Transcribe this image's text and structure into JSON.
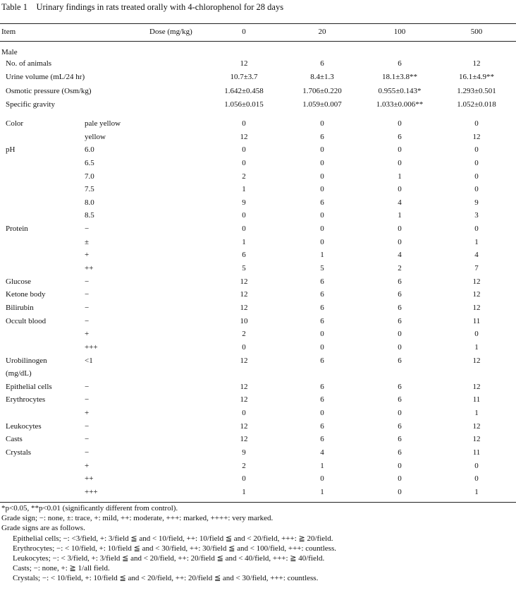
{
  "title": "Table 1 Urinary findings in rats treated orally with 4-chlorophenol for 28 days",
  "header": [
    "Item",
    "Dose (mg/kg)",
    "0",
    "20",
    "100",
    "500"
  ],
  "section": "Male",
  "summary_rows": [
    [
      "No. of animals",
      "12",
      "6",
      "6",
      "12"
    ],
    [
      "Urine volume (mL/24 hr)",
      "10.7±3.7",
      "8.4±1.3",
      "18.1±3.8**",
      "16.1±4.9**"
    ],
    [
      "Osmotic pressure (Osm/kg)",
      "1.642±0.458",
      "1.706±0.220",
      "0.955±0.143*",
      "1.293±0.501"
    ],
    [
      "Specific gravity",
      "1.056±0.015",
      "1.059±0.007",
      "1.033±0.006**",
      "1.052±0.018"
    ]
  ],
  "rows": [
    [
      "Color",
      "pale yellow",
      "0",
      "0",
      "0",
      "0"
    ],
    [
      null,
      "yellow",
      "12",
      "6",
      "6",
      "12"
    ],
    [
      "pH",
      "6.0",
      "0",
      "0",
      "0",
      "0"
    ],
    [
      null,
      "6.5",
      "0",
      "0",
      "0",
      "0"
    ],
    [
      null,
      "7.0",
      "2",
      "0",
      "1",
      "0"
    ],
    [
      null,
      "7.5",
      "1",
      "0",
      "0",
      "0"
    ],
    [
      null,
      "8.0",
      "9",
      "6",
      "4",
      "9"
    ],
    [
      null,
      "8.5",
      "0",
      "0",
      "1",
      "3"
    ],
    [
      "Protein",
      "−",
      "0",
      "0",
      "0",
      "0"
    ],
    [
      null,
      "±",
      "1",
      "0",
      "0",
      "1"
    ],
    [
      null,
      "+",
      "6",
      "1",
      "4",
      "4"
    ],
    [
      null,
      "++",
      "5",
      "5",
      "2",
      "7"
    ],
    [
      "Glucose",
      "−",
      "12",
      "6",
      "6",
      "12"
    ],
    [
      "Ketone body",
      "−",
      "12",
      "6",
      "6",
      "12"
    ],
    [
      "Bilirubin",
      "−",
      "12",
      "6",
      "6",
      "12"
    ],
    [
      "Occult blood",
      "−",
      "10",
      "6",
      "6",
      "11"
    ],
    [
      null,
      "+",
      "2",
      "0",
      "0",
      "0"
    ],
    [
      null,
      "+++",
      "0",
      "0",
      "0",
      "1"
    ],
    [
      "Urobilinogen",
      "<1",
      "12",
      "6",
      "6",
      "12"
    ],
    [
      "(mg/dL)",
      null,
      null,
      null,
      null,
      null
    ],
    [
      "Epithelial cells",
      "−",
      "12",
      "6",
      "6",
      "12"
    ],
    [
      "Erythrocytes",
      "−",
      "12",
      "6",
      "6",
      "11"
    ],
    [
      null,
      "+",
      "0",
      "0",
      "0",
      "1"
    ],
    [
      "Leukocytes",
      "−",
      "12",
      "6",
      "6",
      "12"
    ],
    [
      "Casts",
      "−",
      "12",
      "6",
      "6",
      "12"
    ],
    [
      "Crystals",
      "−",
      "9",
      "4",
      "6",
      "11"
    ],
    [
      null,
      "+",
      "2",
      "1",
      "0",
      "0"
    ],
    [
      null,
      "++",
      "0",
      "0",
      "0",
      "0"
    ],
    [
      null,
      "+++",
      "1",
      "1",
      "0",
      "1"
    ]
  ],
  "footnotes": [
    "*p<0.05, **p<0.01 (significantly different from control).",
    "Grade sign; −: none, ±: trace, +: mild, ++: moderate, +++: marked, ++++: very marked.",
    "Grade signs are as follows.",
    "Epithelial cells; −: <3/field, +: 3/field ≦ and < 10/field, ++: 10/field ≦ and < 20/field, +++: ≧ 20/field.",
    "Erythrocytes; −: < 10/field, +: 10/field ≦ and < 30/field, ++: 30/field ≦ and < 100/field, +++: countless.",
    "Leukocytes; −: < 3/field, +: 3/field ≦ and < 20/field, ++: 20/field ≦ and < 40/field, +++: ≧ 40/field.",
    "Casts; −: none, +: ≧ 1/all field.",
    "Crystals; −: < 10/field, +: 10/field ≦ and < 20/field, ++: 20/field ≦ and < 30/field, +++: countless."
  ]
}
